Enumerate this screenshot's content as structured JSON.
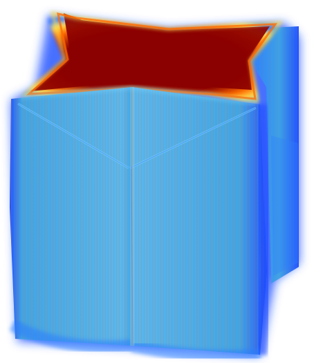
{
  "scene": {
    "subject": "volume-render-box",
    "colormap": "jet",
    "background": "#ffffff",
    "colors": {
      "face_mid": "#3aa3e6",
      "face_light": "#56b6ef",
      "edge_deep_blue": "#1b4cff",
      "glow_blue": "#2a7dff",
      "top_red": "#8b0000",
      "top_orange": "#ff6a00",
      "top_yellow": "#ffe14a",
      "hatch_warm": "#c98d6a"
    }
  }
}
